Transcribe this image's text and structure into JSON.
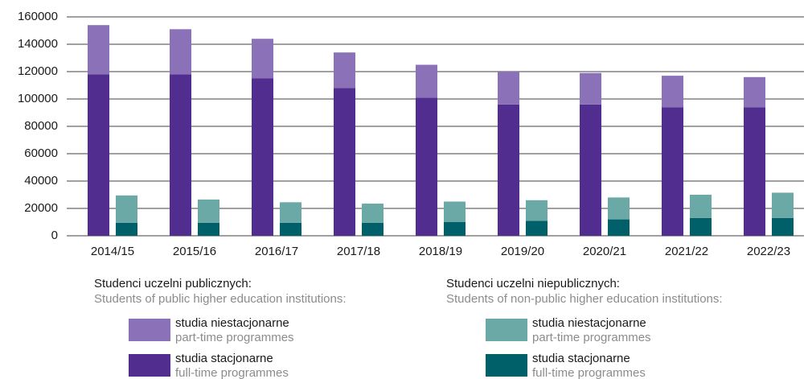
{
  "chart_data": {
    "type": "bar",
    "categories": [
      "2014/15",
      "2015/16",
      "2016/17",
      "2017/18",
      "2018/19",
      "2019/20",
      "2020/21",
      "2021/22",
      "2022/23"
    ],
    "ylim": [
      0,
      160000
    ],
    "yticks": [
      0,
      20000,
      40000,
      60000,
      80000,
      100000,
      120000,
      140000,
      160000
    ],
    "grid": true,
    "groups": [
      {
        "name": "Studenci uczelni publicznych:",
        "name_en": "Students of public higher education institutions:",
        "series": [
          {
            "name": "studia niestacjonarne",
            "name_en": "part-time programmes",
            "color": "#8b72b8",
            "values": [
              36000,
              33000,
              29000,
              26000,
              24000,
              24000,
              23000,
              23000,
              22000
            ]
          },
          {
            "name": "studia stacjonarne",
            "name_en": "full-time programmes",
            "color": "#512d8f",
            "values": [
              118000,
              118000,
              115000,
              108000,
              101000,
              96000,
              96000,
              94000,
              94000
            ]
          }
        ]
      },
      {
        "name": "Studenci uczelni niepublicznych:",
        "name_en": "Students of non-public higher education institutions:",
        "series": [
          {
            "name": "studia niestacjonarne",
            "name_en": "part-time programmes",
            "color": "#6aa9a6",
            "values": [
              20000,
              17000,
              15000,
              14000,
              15000,
              15000,
              16000,
              17000,
              18500
            ]
          },
          {
            "name": "studia stacjonarne",
            "name_en": "full-time programmes",
            "color": "#00606a",
            "values": [
              9500,
              9500,
              9500,
              9500,
              10000,
              11000,
              12000,
              13000,
              13000
            ]
          }
        ]
      }
    ]
  }
}
